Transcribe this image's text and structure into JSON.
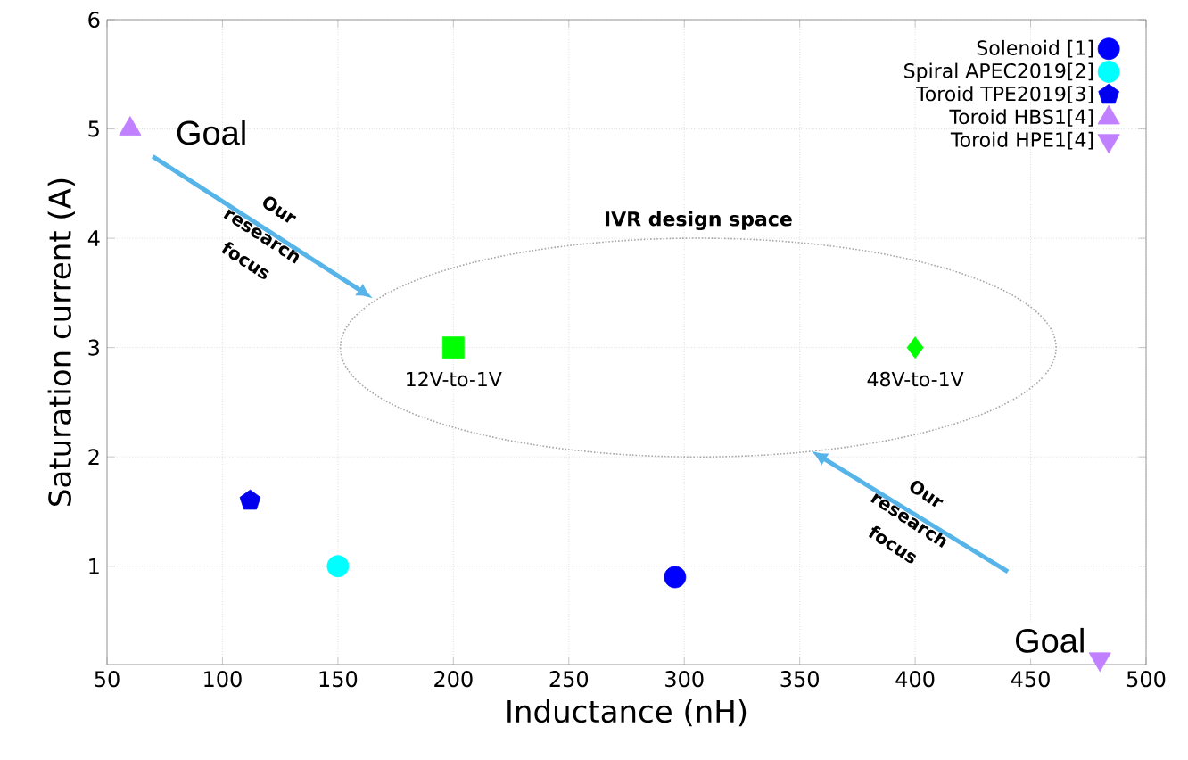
{
  "chart_data": {
    "type": "scatter",
    "xlabel": "Inductance (nH)",
    "ylabel": "Saturation current (A)",
    "xlim": [
      50,
      500
    ],
    "ylim": [
      0.1,
      6
    ],
    "xticks": [
      50,
      100,
      150,
      200,
      250,
      300,
      350,
      400,
      450,
      500
    ],
    "yticks": [
      1,
      2,
      3,
      4,
      5,
      6
    ],
    "grid": true,
    "legend": "top right",
    "series": [
      {
        "name": "Solenoid [1]",
        "color": "#0000ff",
        "marker": "circle",
        "x": [
          296
        ],
        "values": [
          0.9
        ]
      },
      {
        "name": "Spiral APEC2019[2]",
        "color": "#00ffff",
        "marker": "circle",
        "x": [
          150
        ],
        "values": [
          1.0
        ]
      },
      {
        "name": "Toroid TPE2019[3]",
        "color": "#0000ee",
        "x": [
          112
        ],
        "values": [
          1.6
        ]
      },
      {
        "name": "Toroid HBS1[4]",
        "color": "#c080ff",
        "marker": "triangle",
        "x": [
          60
        ],
        "values": [
          5.0
        ]
      },
      {
        "name": "Toroid HPE1[4]",
        "color": "#c080ff",
        "marker": "triangle down",
        "x": [
          480
        ],
        "values": [
          0.15
        ]
      },
      {
        "color": "#00ff00",
        "marker": "square",
        "x": [
          200
        ],
        "values": [
          3
        ]
      },
      {
        "color": "#00ff00",
        "marker": "diamond",
        "x": [
          400
        ],
        "values": [
          3
        ]
      }
    ],
    "annotations": [
      {
        "text": "Goal",
        "x": 60,
        "y": 5
      },
      {
        "text": "Goal",
        "x": 480,
        "y": 0.15
      },
      {
        "text": "12V-to-1V",
        "x": 200,
        "y": 3
      },
      {
        "text": "48V-to-1V",
        "x": 400,
        "y": 3
      },
      "IVR design space",
      "Our research focus",
      "Our research focus"
    ]
  }
}
